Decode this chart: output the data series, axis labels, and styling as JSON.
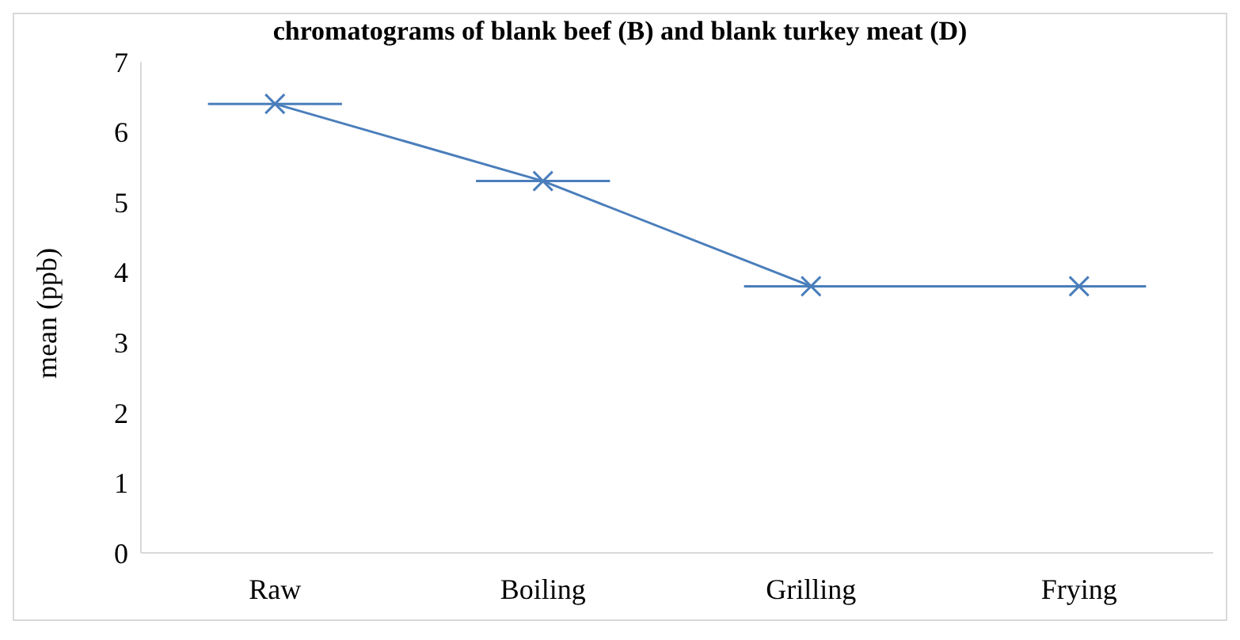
{
  "chart_data": {
    "type": "line",
    "title": "chromatograms of blank beef (B) and blank turkey meat (D)",
    "ylabel": "mean (ppb)",
    "categories": [
      "Raw",
      "Boiling",
      "Grilling",
      "Frying"
    ],
    "series": [
      {
        "color": "#4a7ebb",
        "values": [
          6.4,
          5.3,
          3.8,
          3.8
        ]
      }
    ],
    "ylim": [
      0,
      7
    ],
    "yticks": [
      0,
      1,
      2,
      3,
      4,
      5,
      6,
      7
    ],
    "grid": false,
    "legend": false,
    "marker": "cross",
    "line_style": "solid"
  }
}
